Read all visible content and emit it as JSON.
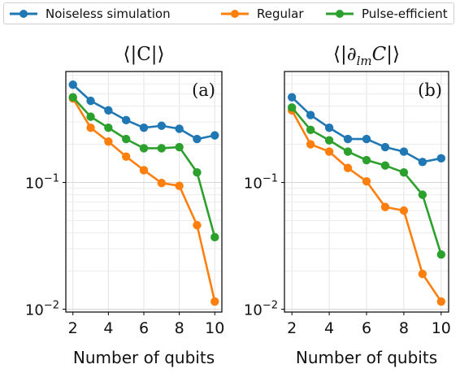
{
  "legend": [
    {
      "name": "Noiseless simulation",
      "color": "#1f77b4"
    },
    {
      "name": "Regular",
      "color": "#ff7f0e"
    },
    {
      "name": "Pulse-efficient",
      "color": "#2ca02c"
    }
  ],
  "chart_data": [
    {
      "type": "line",
      "title": "⟨|C|⟩",
      "panel_label": "(a)",
      "xlabel": "Number of qubits",
      "ylabel": "",
      "yscale": "log",
      "ylim": [
        0.0095,
        0.75
      ],
      "xlim": [
        1.6,
        10.4
      ],
      "grid": true,
      "x": [
        2,
        3,
        4,
        5,
        6,
        7,
        8,
        9,
        10
      ],
      "xticks": [
        "2",
        "4",
        "6",
        "8",
        "10"
      ],
      "yticks": [
        "10−1",
        "10−2"
      ],
      "series": [
        {
          "name": "Noiseless simulation",
          "color": "#1f77b4",
          "values": [
            0.59,
            0.44,
            0.37,
            0.31,
            0.27,
            0.28,
            0.265,
            0.22,
            0.235
          ]
        },
        {
          "name": "Regular",
          "color": "#ff7f0e",
          "values": [
            0.46,
            0.27,
            0.21,
            0.16,
            0.125,
            0.099,
            0.094,
            0.046,
            0.0115
          ]
        },
        {
          "name": "Pulse-efficient",
          "color": "#2ca02c",
          "values": [
            0.47,
            0.33,
            0.27,
            0.22,
            0.186,
            0.186,
            0.19,
            0.12,
            0.037
          ]
        }
      ]
    },
    {
      "type": "line",
      "title": "⟨|∂lmC|⟩",
      "panel_label": "(b)",
      "xlabel": "Number of qubits",
      "ylabel": "",
      "yscale": "log",
      "ylim": [
        0.0095,
        0.75
      ],
      "xlim": [
        1.6,
        10.4
      ],
      "grid": true,
      "x": [
        2,
        3,
        4,
        5,
        6,
        7,
        8,
        9,
        10
      ],
      "xticks": [
        "2",
        "4",
        "6",
        "8",
        "10"
      ],
      "yticks": [
        "10−1",
        "10−2"
      ],
      "series": [
        {
          "name": "Noiseless simulation",
          "color": "#1f77b4",
          "values": [
            0.47,
            0.34,
            0.27,
            0.22,
            0.22,
            0.19,
            0.175,
            0.145,
            0.155
          ]
        },
        {
          "name": "Regular",
          "color": "#ff7f0e",
          "values": [
            0.37,
            0.2,
            0.175,
            0.13,
            0.102,
            0.064,
            0.06,
            0.019,
            0.0115
          ]
        },
        {
          "name": "Pulse-efficient",
          "color": "#2ca02c",
          "values": [
            0.39,
            0.26,
            0.215,
            0.175,
            0.15,
            0.136,
            0.12,
            0.08,
            0.027
          ]
        }
      ]
    }
  ]
}
